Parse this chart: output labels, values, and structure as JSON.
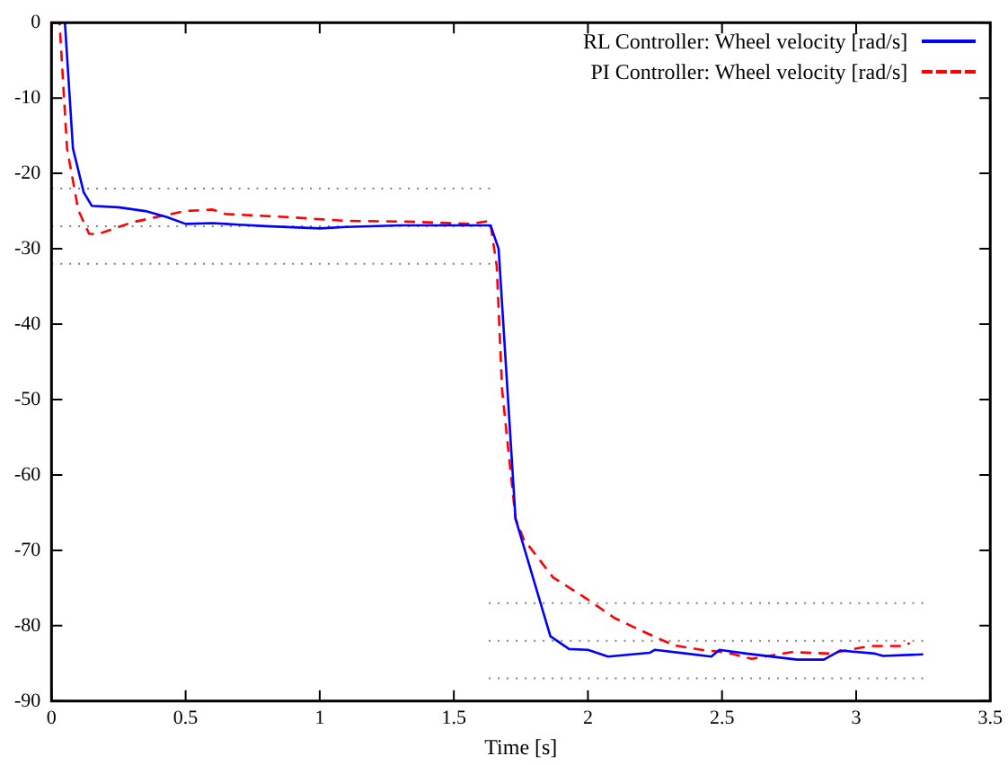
{
  "chart_data": {
    "type": "line",
    "xlabel": "Time [s]",
    "xlim": [
      0,
      3.5
    ],
    "xticks": [
      0,
      0.5,
      1,
      1.5,
      2,
      2.5,
      3,
      3.5
    ],
    "ylim": [
      -90,
      0
    ],
    "yticks": [
      -90,
      -80,
      -70,
      -60,
      -50,
      -40,
      -30,
      -20,
      -10,
      0
    ],
    "grid": false,
    "legend": "top right",
    "marker": "none",
    "series": [
      {
        "name": "RL Controller: Wheel velocity [rad/s]",
        "color": "#0000ff",
        "line_style": "solid",
        "x": [
          0.05,
          0.08,
          0.12,
          0.15,
          0.25,
          0.35,
          0.43,
          0.5,
          0.6,
          0.7,
          0.8,
          1.0,
          1.1,
          1.3,
          1.5,
          1.637,
          1.667,
          1.73,
          1.795,
          1.86,
          1.93,
          2.0,
          2.075,
          2.23,
          2.25,
          2.46,
          2.49,
          2.59,
          2.78,
          2.88,
          2.94,
          3.07,
          3.1,
          3.25
        ],
        "values": [
          0,
          -16.7,
          -22.5,
          -24.3,
          -24.5,
          -25,
          -25.8,
          -26.7,
          -26.6,
          -26.8,
          -27,
          -27.3,
          -27.1,
          -26.9,
          -26.9,
          -26.9,
          -30,
          -65.8,
          -73.6,
          -81.4,
          -83.1,
          -83.2,
          -84.1,
          -83.6,
          -83.2,
          -84.1,
          -83.2,
          -83.7,
          -84.5,
          -84.5,
          -83.3,
          -83.7,
          -84,
          -83.8
        ]
      },
      {
        "name": "PI Controller: Wheel velocity [rad/s]",
        "color": "#ff0000",
        "line_style": "dashed",
        "x": [
          0,
          0.03,
          0.058,
          0.1,
          0.14,
          0.17,
          0.3,
          0.43,
          0.5,
          0.6,
          0.65,
          0.88,
          1.1,
          1.33,
          1.56,
          1.635,
          1.66,
          1.68,
          1.73,
          1.76,
          1.87,
          1.99,
          2.1,
          2.22,
          2.32,
          2.44,
          2.51,
          2.61,
          2.76,
          2.9,
          3.05,
          3.18,
          3.2
        ],
        "values": [
          0,
          0,
          -16.7,
          -24.9,
          -28,
          -28.1,
          -26.5,
          -25.5,
          -25,
          -24.8,
          -25.4,
          -25.8,
          -26.3,
          -26.4,
          -26.7,
          -26.3,
          -32.3,
          -48.7,
          -65.8,
          -68.5,
          -73.6,
          -76.3,
          -79,
          -81,
          -82.6,
          -83.3,
          -83.5,
          -84.4,
          -83.5,
          -83.7,
          -82.7,
          -82.7,
          -82.3
        ]
      },
      {
        "color": "#808080",
        "line_style": "dotted",
        "x": [
          0,
          1.635
        ],
        "values": [
          -22,
          -22
        ]
      },
      {
        "color": "#808080",
        "line_style": "dotted",
        "x": [
          0,
          1.635
        ],
        "values": [
          -27,
          -27
        ]
      },
      {
        "color": "#808080",
        "line_style": "dotted",
        "x": [
          0,
          1.635
        ],
        "values": [
          -32,
          -32
        ]
      },
      {
        "color": "#808080",
        "line_style": "dotted",
        "x": [
          1.63,
          3.25
        ],
        "values": [
          -77,
          -77
        ]
      },
      {
        "color": "#808080",
        "line_style": "dotted",
        "x": [
          1.63,
          3.25
        ],
        "values": [
          -82,
          -82
        ]
      },
      {
        "color": "#808080",
        "line_style": "dotted",
        "x": [
          1.63,
          3.25
        ],
        "values": [
          -87,
          -87
        ]
      }
    ]
  }
}
